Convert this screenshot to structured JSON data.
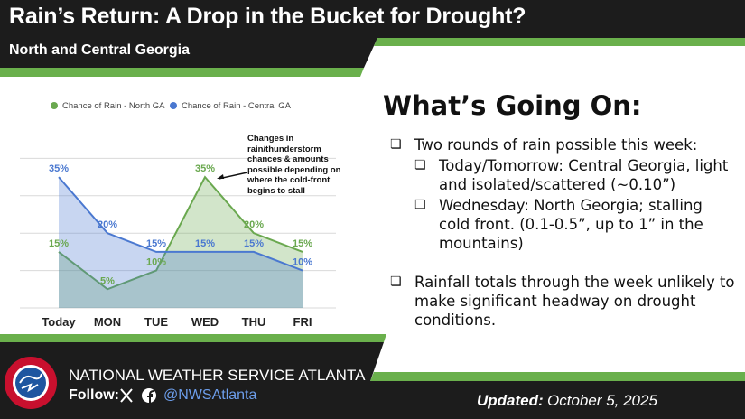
{
  "header": {
    "title": "Rain’s Return: A Drop in the Bucket for Drought?",
    "subtitle": "North and Central Georgia"
  },
  "chart_data": {
    "type": "area",
    "categories": [
      "Today",
      "MON",
      "TUE",
      "WED",
      "THU",
      "FRI"
    ],
    "series": [
      {
        "name": "Chance of Rain - North GA",
        "color": "#6aa84f",
        "values": [
          15,
          5,
          10,
          35,
          20,
          15
        ],
        "value_labels": [
          "15%",
          "5%",
          "10%",
          "35%",
          "20%",
          "15%"
        ]
      },
      {
        "name": "Chance of Rain - Central GA",
        "color": "#4a78d0",
        "values": [
          35,
          20,
          15,
          15,
          15,
          10
        ],
        "value_labels": [
          "35%",
          "20%",
          "15%",
          "15%",
          "15%",
          "10%"
        ]
      }
    ],
    "ylim": [
      0,
      50
    ],
    "yticks": [
      0,
      10,
      20,
      30,
      40
    ],
    "grid": true,
    "legend": "top",
    "annotation": "Changes in rain/thunderstorm chances & amounts possible depending on where the cold-front begins to stall"
  },
  "panel": {
    "heading": "What’s Going On:",
    "bullets": [
      {
        "text": "Two rounds of rain possible this week:",
        "sub": [
          "Today/Tomorrow: Central Georgia, light and isolated/scattered (~0.10”)",
          "Wednesday: North Georgia; stalling cold front. (0.1-0.5”, up to 1” in the mountains)"
        ]
      },
      {
        "text": "Rainfall totals through the week unlikely to make significant headway on drought conditions.",
        "sub": []
      }
    ]
  },
  "footer": {
    "office": "NATIONAL WEATHER SERVICE ATLANTA",
    "follow": "Follow:",
    "handle": "@NWSAtlanta",
    "updated_label": "Updated:",
    "updated_date": "October 5, 2025"
  }
}
